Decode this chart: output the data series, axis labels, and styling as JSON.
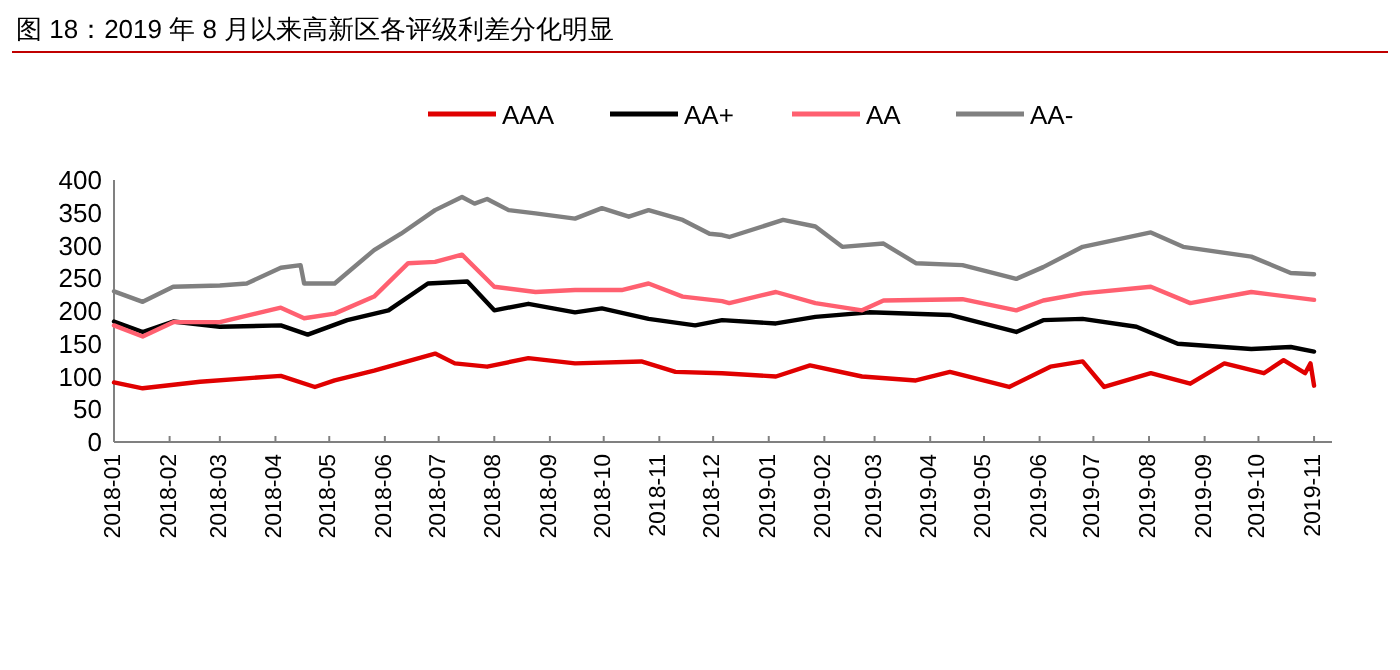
{
  "chart_data": {
    "type": "line",
    "title": "图 18：2019 年 8 月以来高新区各评级利差分化明显",
    "xlim": [
      "2018-01-01",
      "2019-11-11"
    ],
    "xticks": [
      "2018-01",
      "2018-02",
      "2018-03",
      "2018-04",
      "2018-05",
      "2018-06",
      "2018-07",
      "2018-08",
      "2018-09",
      "2018-10",
      "2018-11",
      "2018-12",
      "2019-01",
      "2019-02",
      "2019-03",
      "2019-04",
      "2019-05",
      "2019-06",
      "2019-07",
      "2019-08",
      "2019-09",
      "2019-10",
      "2019-11"
    ],
    "ylim": [
      0,
      400
    ],
    "yticks": [
      0,
      50,
      100,
      150,
      200,
      250,
      300,
      350,
      400
    ],
    "grid": false,
    "legend": "top",
    "line_style": "solid",
    "marker": "none",
    "series": [
      {
        "name": "AAA",
        "color": "#e00000",
        "x": [
          "2018-01-01",
          "2018-01-17",
          "2018-02-18",
          "2018-04-04",
          "2018-04-23",
          "2018-05-04",
          "2018-05-26",
          "2018-06-29",
          "2018-07-10",
          "2018-07-28",
          "2018-08-20",
          "2018-09-15",
          "2018-10-22",
          "2018-11-10",
          "2018-12-06",
          "2019-01-05",
          "2019-01-24",
          "2019-02-22",
          "2019-03-24",
          "2019-04-12",
          "2019-05-15",
          "2019-06-07",
          "2019-06-25",
          "2019-07-07",
          "2019-08-02",
          "2019-08-24",
          "2019-09-12",
          "2019-10-04",
          "2019-10-15",
          "2019-10-27",
          "2019-10-30",
          "2019-11-01"
        ],
        "values": [
          91,
          82,
          92,
          101,
          84,
          94,
          109,
          135,
          120,
          115,
          128,
          120,
          123,
          107,
          105,
          100,
          117,
          100,
          94,
          107,
          84,
          115,
          123,
          84,
          105,
          89,
          120,
          105,
          125,
          105,
          120,
          86
        ]
      },
      {
        "name": "AA+",
        "color": "#000000",
        "x": [
          "2018-01-01",
          "2018-01-17",
          "2018-02-03",
          "2018-03-01",
          "2018-04-04",
          "2018-04-19",
          "2018-05-11",
          "2018-06-03",
          "2018-06-25",
          "2018-07-17",
          "2018-08-01",
          "2018-08-20",
          "2018-09-15",
          "2018-09-30",
          "2018-10-26",
          "2018-11-21",
          "2018-12-06",
          "2019-01-05",
          "2019-01-27",
          "2019-02-26",
          "2019-04-12",
          "2019-05-19",
          "2019-06-03",
          "2019-06-25",
          "2019-07-25",
          "2019-08-17",
          "2019-09-27",
          "2019-10-19",
          "2019-11-01"
        ],
        "values": [
          184,
          168,
          184,
          176,
          178,
          164,
          186,
          201,
          242,
          245,
          201,
          211,
          198,
          204,
          188,
          178,
          186,
          181,
          191,
          198,
          194,
          168,
          186,
          188,
          176,
          150,
          142,
          145,
          138
        ]
      },
      {
        "name": "AA",
        "color": "#ff6070",
        "x": [
          "2018-01-01",
          "2018-01-17",
          "2018-02-03",
          "2018-03-01",
          "2018-04-04",
          "2018-04-17",
          "2018-05-04",
          "2018-05-26",
          "2018-06-14",
          "2018-06-29",
          "2018-07-14",
          "2018-08-01",
          "2018-08-24",
          "2018-09-15",
          "2018-10-11",
          "2018-10-26",
          "2018-11-14",
          "2018-12-06",
          "2018-12-10",
          "2019-01-05",
          "2019-01-27",
          "2019-02-22",
          "2019-03-06",
          "2019-04-19",
          "2019-05-19",
          "2019-06-03",
          "2019-06-25",
          "2019-08-02",
          "2019-08-24",
          "2019-09-27",
          "2019-11-01"
        ],
        "values": [
          178,
          161,
          183,
          183,
          205,
          189,
          196,
          222,
          273,
          275,
          286,
          237,
          229,
          232,
          232,
          242,
          222,
          215,
          212,
          229,
          212,
          201,
          216,
          218,
          201,
          216,
          227,
          237,
          212,
          229,
          217
        ]
      },
      {
        "name": "AA-",
        "color": "#808080",
        "x": [
          "2018-01-01",
          "2018-01-17",
          "2018-02-03",
          "2018-03-01",
          "2018-03-16",
          "2018-04-04",
          "2018-04-15",
          "2018-04-17",
          "2018-05-04",
          "2018-05-26",
          "2018-06-10",
          "2018-06-29",
          "2018-07-14",
          "2018-07-21",
          "2018-07-28",
          "2018-08-09",
          "2018-08-24",
          "2018-09-15",
          "2018-09-30",
          "2018-10-15",
          "2018-10-26",
          "2018-11-14",
          "2018-11-29",
          "2018-12-06",
          "2018-12-10",
          "2019-01-09",
          "2019-01-27",
          "2019-02-11",
          "2019-03-06",
          "2019-03-24",
          "2019-04-19",
          "2019-05-19",
          "2019-06-03",
          "2019-06-25",
          "2019-08-02",
          "2019-08-20",
          "2019-09-27",
          "2019-10-19",
          "2019-11-01"
        ],
        "values": [
          230,
          214,
          237,
          239,
          242,
          266,
          270,
          242,
          242,
          293,
          318,
          354,
          374,
          364,
          371,
          354,
          349,
          341,
          357,
          344,
          354,
          339,
          318,
          316,
          313,
          339,
          329,
          298,
          303,
          273,
          270,
          249,
          267,
          298,
          320,
          298,
          283,
          258,
          256
        ]
      }
    ]
  }
}
